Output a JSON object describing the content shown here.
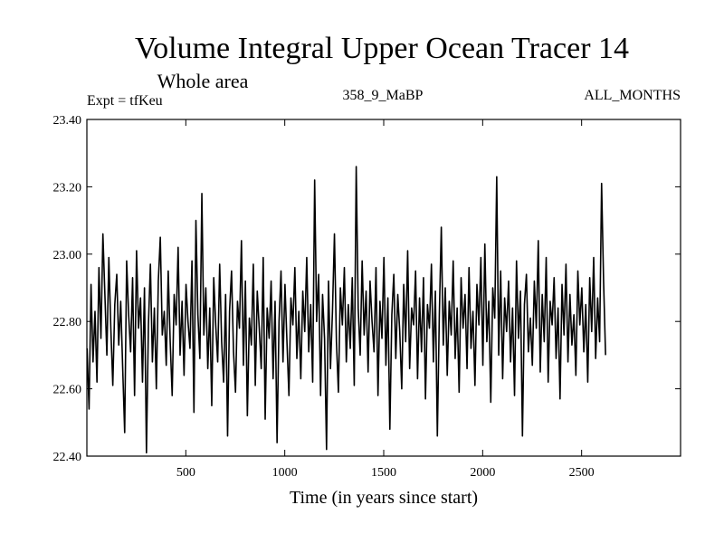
{
  "chart_data": {
    "type": "line",
    "title": "Volume Integral Upper Ocean Tracer 14",
    "subtitle": "Whole area",
    "expt_label": "Expt = tfKeu",
    "period_label": "358_9_MaBP",
    "months_label": "ALL_MONTHS",
    "xlabel": "Time (in years since start)",
    "ylabel": "",
    "xlim": [
      0,
      3000
    ],
    "ylim": [
      22.4,
      23.4
    ],
    "x_ticks": [
      500,
      1000,
      1500,
      2000,
      2500
    ],
    "x_tick_labels": [
      "500",
      "1000",
      "1500",
      "2000",
      "2500"
    ],
    "y_ticks": [
      22.4,
      22.6,
      22.8,
      23.0,
      23.2,
      23.4
    ],
    "y_tick_labels": [
      "22.40",
      "22.60",
      "22.80",
      "23.00",
      "23.20",
      "23.40"
    ],
    "grid": false,
    "series": [
      {
        "x_start": 1,
        "x_step": 10,
        "values": [
          22.72,
          22.54,
          22.91,
          22.68,
          22.83,
          22.62,
          22.96,
          22.75,
          23.06,
          22.88,
          22.7,
          22.99,
          22.78,
          22.61,
          22.85,
          22.94,
          22.73,
          22.86,
          22.66,
          22.47,
          22.98,
          22.82,
          22.71,
          22.93,
          22.58,
          23.01,
          22.78,
          22.87,
          22.62,
          22.9,
          22.41,
          22.79,
          22.97,
          22.68,
          22.84,
          22.6,
          22.92,
          23.05,
          22.76,
          22.83,
          22.67,
          22.95,
          22.74,
          22.58,
          22.88,
          22.79,
          23.02,
          22.7,
          22.86,
          22.64,
          22.91,
          22.8,
          22.72,
          22.98,
          22.53,
          23.1,
          22.82,
          22.69,
          23.18,
          22.76,
          22.9,
          22.66,
          22.84,
          22.55,
          22.93,
          22.79,
          22.68,
          22.97,
          22.74,
          22.62,
          22.88,
          22.46,
          22.83,
          22.95,
          22.71,
          22.59,
          22.86,
          22.78,
          23.04,
          22.67,
          22.92,
          22.52,
          22.81,
          22.73,
          22.97,
          22.61,
          22.89,
          22.78,
          22.66,
          22.99,
          22.51,
          22.84,
          22.75,
          22.92,
          22.63,
          22.86,
          22.44,
          22.8,
          22.95,
          22.68,
          22.91,
          22.74,
          22.58,
          22.87,
          22.79,
          22.96,
          22.69,
          22.83,
          22.63,
          22.89,
          22.77,
          22.99,
          22.71,
          22.85,
          22.62,
          23.22,
          22.8,
          22.94,
          22.58,
          22.88,
          22.75,
          22.42,
          22.92,
          22.66,
          22.83,
          23.06,
          22.74,
          22.59,
          22.9,
          22.79,
          22.96,
          22.68,
          22.85,
          22.72,
          22.93,
          22.61,
          23.26,
          22.84,
          22.7,
          22.98,
          22.76,
          22.89,
          22.65,
          22.92,
          22.8,
          22.71,
          22.96,
          22.58,
          22.86,
          22.75,
          22.99,
          22.67,
          22.87,
          22.48,
          22.82,
          22.94,
          22.69,
          22.88,
          22.77,
          22.6,
          22.91,
          22.74,
          23.01,
          22.66,
          22.84,
          22.79,
          22.95,
          22.63,
          22.87,
          22.71,
          22.93,
          22.57,
          22.85,
          22.78,
          22.97,
          22.68,
          22.89,
          22.46,
          22.82,
          23.08,
          22.73,
          22.9,
          22.64,
          22.86,
          22.76,
          22.98,
          22.69,
          22.84,
          22.59,
          22.93,
          22.78,
          22.88,
          22.66,
          22.96,
          22.72,
          22.83,
          22.61,
          22.91,
          22.79,
          22.99,
          22.67,
          23.03,
          22.74,
          22.86,
          22.56,
          22.9,
          22.81,
          23.23,
          22.7,
          22.95,
          22.63,
          22.87,
          22.77,
          22.92,
          22.68,
          22.84,
          22.58,
          22.98,
          22.75,
          22.89,
          22.46,
          22.85,
          22.94,
          22.71,
          22.81,
          22.67,
          22.92,
          22.78,
          23.04,
          22.65,
          22.88,
          22.74,
          22.99,
          22.62,
          22.86,
          22.79,
          22.93,
          22.69,
          22.84,
          22.57,
          22.91,
          22.76,
          22.97,
          22.68,
          22.88,
          22.73,
          22.82,
          22.64,
          22.95,
          22.79,
          22.9,
          22.71,
          22.85,
          22.62,
          22.93,
          22.77,
          22.99,
          22.69,
          22.87,
          22.74,
          23.21,
          22.92,
          22.7
        ]
      }
    ]
  }
}
